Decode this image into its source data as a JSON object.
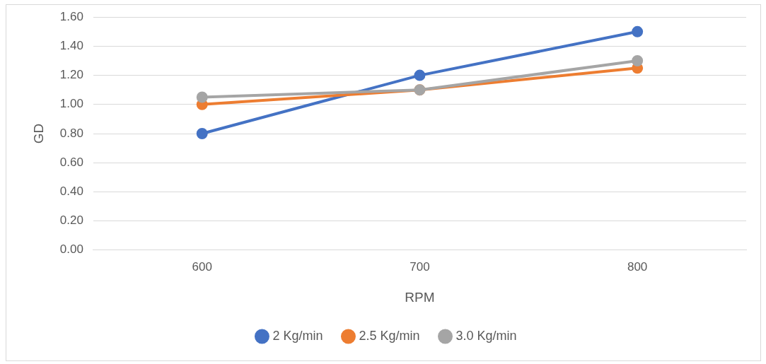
{
  "chart_data": {
    "type": "line",
    "xlabel": "RPM",
    "ylabel": "GD",
    "categories": [
      "600",
      "700",
      "800"
    ],
    "series": [
      {
        "name": "2 Kg/min",
        "color": "#4472c4",
        "values": [
          0.8,
          1.2,
          1.5
        ]
      },
      {
        "name": "2.5 Kg/min",
        "color": "#ed7d31",
        "values": [
          1.0,
          1.1,
          1.25
        ]
      },
      {
        "name": "3.0 Kg/min",
        "color": "#a5a5a5",
        "values": [
          1.05,
          1.1,
          1.3
        ]
      }
    ],
    "ylim": [
      0,
      1.6
    ],
    "yticks": [
      {
        "value": 0,
        "label": "0.00"
      },
      {
        "value": 0.2,
        "label": "0.20"
      },
      {
        "value": 0.4,
        "label": "0.40"
      },
      {
        "value": 0.6,
        "label": "0.60"
      },
      {
        "value": 0.8,
        "label": "0.80"
      },
      {
        "value": 1.0,
        "label": "1.00"
      },
      {
        "value": 1.2,
        "label": "1.20"
      },
      {
        "value": 1.4,
        "label": "1.40"
      },
      {
        "value": 1.6,
        "label": "1.60"
      }
    ],
    "grid": "y",
    "legend": "bottom",
    "marker": "circle",
    "line_style": "solid"
  }
}
